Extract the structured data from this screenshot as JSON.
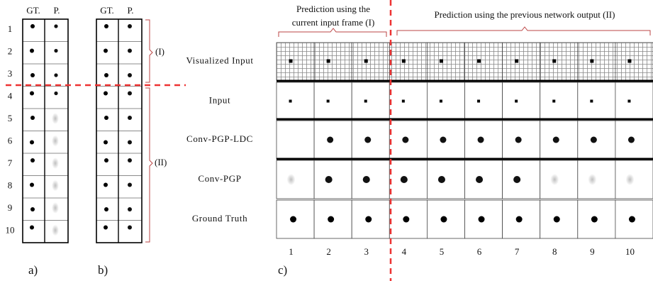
{
  "panel_a": {
    "headers": [
      "GT.",
      "P."
    ],
    "rows": [
      "1",
      "2",
      "3",
      "4",
      "5",
      "6",
      "7",
      "8",
      "9",
      "10"
    ],
    "label": "a)"
  },
  "panel_b": {
    "headers": [
      "GT.",
      "P."
    ],
    "label": "b)",
    "braces": [
      "(I)",
      "(II)"
    ]
  },
  "panel_c": {
    "header_left": [
      "Prediction using the",
      "current input frame (I)"
    ],
    "header_right": "Prediction using the previous network output (II)",
    "row_labels": [
      "Visualized Input",
      "Input",
      "Conv-PGP-LDC",
      "Conv-PGP",
      "Ground Truth"
    ],
    "columns": [
      "1",
      "2",
      "3",
      "4",
      "5",
      "6",
      "7",
      "8",
      "9",
      "10"
    ],
    "label": "c)"
  }
}
